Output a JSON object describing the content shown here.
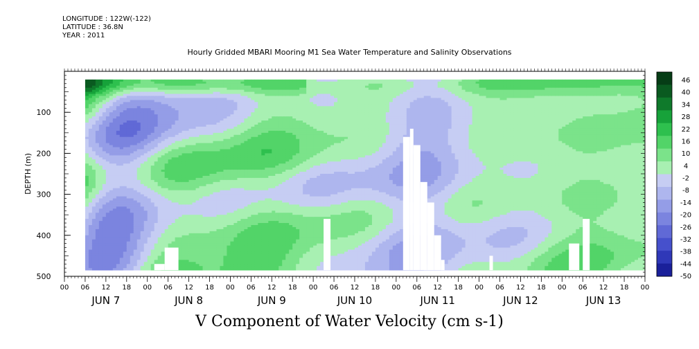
{
  "header": {
    "longitude": "LONGITUDE : 122W(-122)",
    "latitude": "LATITUDE : 36.8N",
    "year": "YEAR : 2011"
  },
  "chart_data": {
    "type": "heatmap",
    "title": "Hourly Gridded MBARI Mooring M1 Sea Water Temperature and Salinity Observations",
    "variable_label": "V Component of Water Velocity (cm s-1)",
    "ylabel": "DEPTH (m)",
    "ylim": [
      500,
      0
    ],
    "y_ticks": [
      100,
      200,
      300,
      400,
      500
    ],
    "x_hour_ticks": [
      "00",
      "06",
      "12",
      "18",
      "00",
      "06",
      "12",
      "18",
      "00",
      "06",
      "12",
      "18",
      "00",
      "06",
      "12",
      "18",
      "00",
      "06",
      "12",
      "18",
      "00",
      "06",
      "12",
      "18",
      "00",
      "06",
      "12",
      "18",
      "00"
    ],
    "x_day_labels": [
      "JUN  7",
      "JUN  8",
      "JUN  9",
      "JUN 10",
      "JUN 11",
      "JUN 12",
      "JUN 13"
    ],
    "colorbar": {
      "labels": [
        "46",
        "40",
        "34",
        "28",
        "22",
        "16",
        "10",
        "4",
        "-2",
        "-8",
        "-14",
        "-20",
        "-26",
        "-32",
        "-38",
        "-44",
        "-50"
      ],
      "colors": [
        "#063d16",
        "#0a5a20",
        "#0f7a2b",
        "#17a23a",
        "#2ec04e",
        "#52d468",
        "#7be38a",
        "#a8f0b2",
        "#c6cdf3",
        "#aeb6ee",
        "#949de7",
        "#7b84df",
        "#6069d6",
        "#4650cc",
        "#2f38b8",
        "#1a209a",
        "#0a0e6e"
      ]
    },
    "data_extent": {
      "start_hour": 6,
      "end_hour": 168,
      "depth_top": 20,
      "depth_bottom": 485
    },
    "missing_regions": [
      {
        "hour_start": 26,
        "hour_end": 29,
        "depth_top": 470,
        "depth_bottom": 485
      },
      {
        "hour_start": 29,
        "hour_end": 33,
        "depth_top": 430,
        "depth_bottom": 485
      },
      {
        "hour_start": 75,
        "hour_end": 77,
        "depth_top": 360,
        "depth_bottom": 485
      },
      {
        "hour_start": 98,
        "hour_end": 100,
        "depth_top": 160,
        "depth_bottom": 485
      },
      {
        "hour_start": 100,
        "hour_end": 101,
        "depth_top": 140,
        "depth_bottom": 485
      },
      {
        "hour_start": 101,
        "hour_end": 103,
        "depth_top": 180,
        "depth_bottom": 485
      },
      {
        "hour_start": 103,
        "hour_end": 105,
        "depth_top": 270,
        "depth_bottom": 485
      },
      {
        "hour_start": 105,
        "hour_end": 107,
        "depth_top": 320,
        "depth_bottom": 485
      },
      {
        "hour_start": 107,
        "hour_end": 109,
        "depth_top": 400,
        "depth_bottom": 485
      },
      {
        "hour_start": 109,
        "hour_end": 110,
        "depth_top": 460,
        "depth_bottom": 485
      },
      {
        "hour_start": 123,
        "hour_end": 124,
        "depth_top": 450,
        "depth_bottom": 485
      },
      {
        "hour_start": 146,
        "hour_end": 149,
        "depth_top": 420,
        "depth_bottom": 485
      },
      {
        "hour_start": 150,
        "hour_end": 152,
        "depth_top": 360,
        "depth_bottom": 485
      }
    ]
  }
}
